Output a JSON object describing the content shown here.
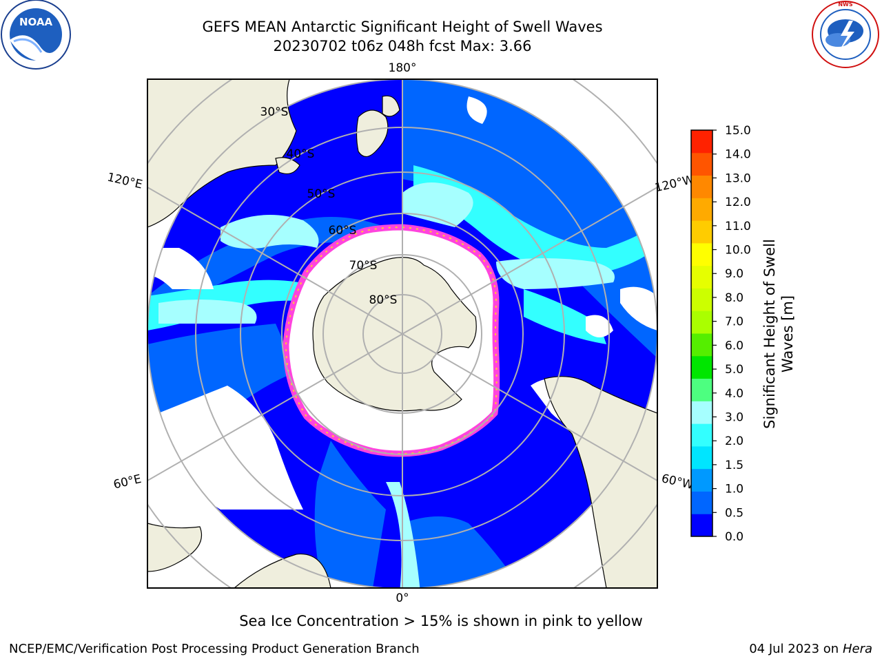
{
  "header": {
    "title": "GEFS MEAN Antarctic Significant Height of Swell Waves",
    "subtitle": "20230702 t06z 048h fcst   Max: 3.66"
  },
  "logos": {
    "left_icon": "noaa-logo-icon",
    "left_text": "NOAA",
    "left_ring_text": "NATIONAL OCEANIC AND ATMOSPHERIC ADMINISTRATION · U.S. DEPARTMENT OF COMMERCE",
    "right_icon": "national-weather-service-logo-icon",
    "right_ring_text": "NATIONAL WEATHER SERVICE"
  },
  "map": {
    "projection": "south-polar-stereographic",
    "longitude_labels": [
      "180°",
      "120°E",
      "120°W",
      "60°E",
      "60°W",
      "0°"
    ],
    "latitude_labels": [
      "30°S",
      "40°S",
      "50°S",
      "60°S",
      "70°S",
      "80°S"
    ],
    "colors": {
      "land": "#efeedd",
      "ice_edge_pink": "#ff44dd",
      "ice_edge_yellow": "#ffcc33",
      "gridline": "#b0b0b0"
    }
  },
  "colorbar": {
    "label_line1": "Significant Height of Swell",
    "label_line2": "Waves [m]",
    "ticks": [
      "15.0",
      "14.0",
      "13.0",
      "12.0",
      "11.0",
      "10.0",
      "9.0",
      "8.0",
      "7.0",
      "6.0",
      "5.0",
      "4.0",
      "3.0",
      "2.0",
      "1.5",
      "1.0",
      "0.5",
      "0.0"
    ],
    "colors_bottom_to_top": [
      "#0000ff",
      "#0066ff",
      "#0099ff",
      "#00e5ff",
      "#33ffff",
      "#a6ffff",
      "#4dff80",
      "#00e600",
      "#55ee00",
      "#aaff00",
      "#ccff00",
      "#e6ff00",
      "#ffff00",
      "#ffcc00",
      "#ffaa00",
      "#ff8800",
      "#ff5500",
      "#ff2200"
    ]
  },
  "caption": "Sea Ice Concentration > 15% is shown in pink to yellow",
  "footer": {
    "left": "NCEP/EMC/Verification Post Processing Product Generation Branch",
    "right_date": "04 Jul 2023 on",
    "right_system": "Hera"
  }
}
